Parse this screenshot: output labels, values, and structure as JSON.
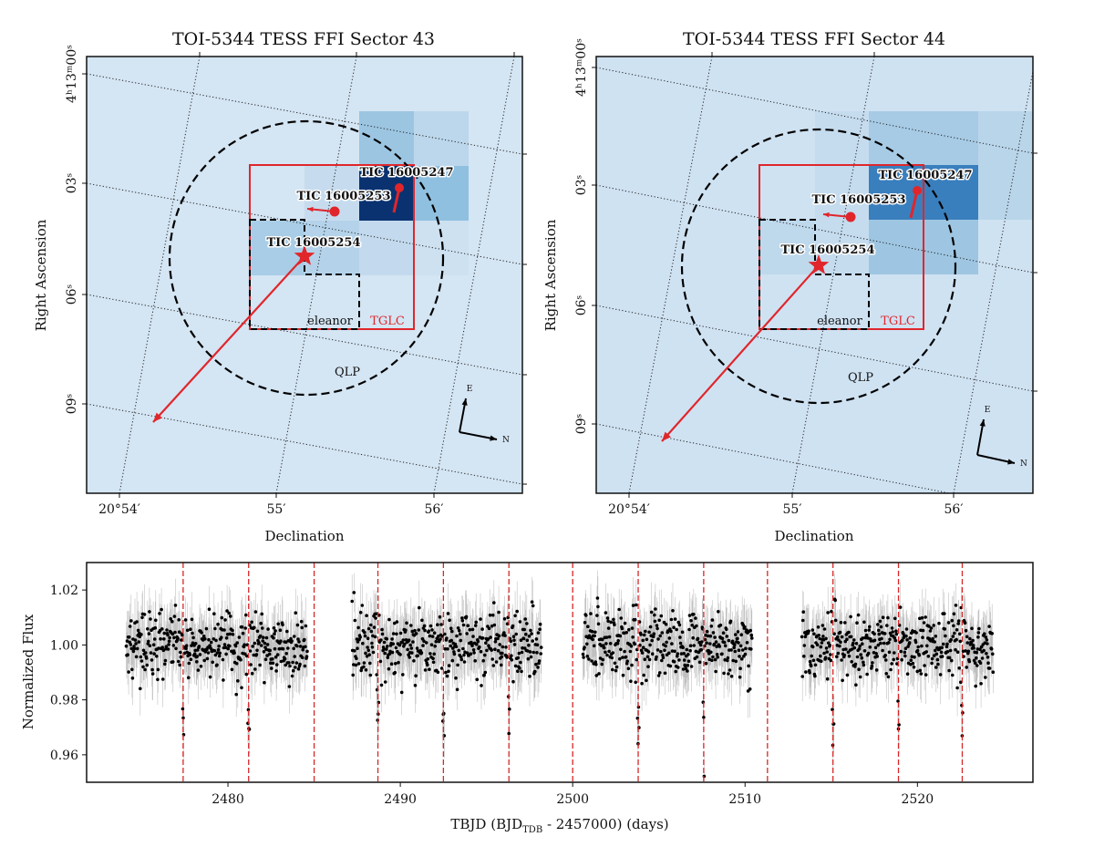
{
  "chart_data": [
    {
      "type": "heatmap",
      "title": "TOI-5344 TESS FFI Sector 43",
      "xlabel": "Declination",
      "ylabel": "Right Ascension",
      "xtick_labels": [
        "20°54′",
        "55′",
        "56′"
      ],
      "ytick_labels": [
        "4ʰ13ᵐ00ˢ",
        "03ˢ",
        "06ˢ",
        "09ˢ"
      ],
      "colormap": "Blues",
      "grid": "dotted",
      "targets": [
        {
          "label": "TIC 16005247",
          "marker": "dot"
        },
        {
          "label": "TIC 16005253",
          "marker": "dot"
        },
        {
          "label": "TIC 16005254",
          "marker": "star"
        }
      ],
      "apertures": [
        {
          "label": "eleanor",
          "color": "#000000",
          "style": "dashed"
        },
        {
          "label": "TGLC",
          "color": "#d62728",
          "style": "solid"
        },
        {
          "label": "QLP",
          "color": "#000000",
          "style": "dashed circle"
        }
      ],
      "compass": {
        "east": "E",
        "north": "N"
      }
    },
    {
      "type": "heatmap",
      "title": "TOI-5344 TESS FFI Sector 44",
      "xlabel": "Declination",
      "ylabel": "Right Ascension",
      "xtick_labels": [
        "20°54′",
        "55′",
        "56′"
      ],
      "ytick_labels": [
        "4ʰ13ᵐ00ˢ",
        "03ˢ",
        "06ˢ",
        "09ˢ"
      ],
      "colormap": "Blues",
      "grid": "dotted",
      "targets": [
        {
          "label": "TIC 16005247",
          "marker": "dot"
        },
        {
          "label": "TIC 16005253",
          "marker": "dot"
        },
        {
          "label": "TIC 16005254",
          "marker": "star"
        }
      ],
      "apertures": [
        {
          "label": "eleanor",
          "color": "#000000",
          "style": "dashed"
        },
        {
          "label": "TGLC",
          "color": "#d62728",
          "style": "solid"
        },
        {
          "label": "QLP",
          "color": "#000000",
          "style": "dashed circle"
        }
      ],
      "compass": {
        "east": "E",
        "north": "N"
      }
    },
    {
      "type": "scatter",
      "xlabel_parts": [
        "TBJD (BJD",
        "TDB",
        " - 2457000) (days)"
      ],
      "ylabel": "Normalized Flux",
      "xlim": [
        2471.8,
        2526.7
      ],
      "ylim": [
        0.95,
        1.03
      ],
      "xticks": [
        2480,
        2490,
        2500,
        2510,
        2520
      ],
      "xtick_labels": [
        "2480",
        "2490",
        "2500",
        "2510",
        "2520"
      ],
      "yticks": [
        0.96,
        0.98,
        1.0,
        1.02
      ],
      "ytick_labels": [
        "0.96",
        "0.98",
        "1.00",
        "1.02"
      ],
      "segments": [
        [
          2474.1,
          2484.6
        ],
        [
          2487.2,
          2498.2
        ],
        [
          2500.6,
          2510.4
        ],
        [
          2513.3,
          2524.4
        ]
      ],
      "transit_times": [
        2477.4,
        2481.2,
        2485.0,
        2488.7,
        2492.5,
        2496.3,
        2500.0,
        2503.8,
        2507.6,
        2511.3,
        2515.1,
        2518.9,
        2522.6
      ],
      "baseline_flux": 1.0,
      "flux_scatter": 0.006,
      "transit_depth": 0.03,
      "marker_color": "#000000",
      "errorbar_color": "#9a9a9a",
      "transit_line_color": "#d62728"
    }
  ]
}
